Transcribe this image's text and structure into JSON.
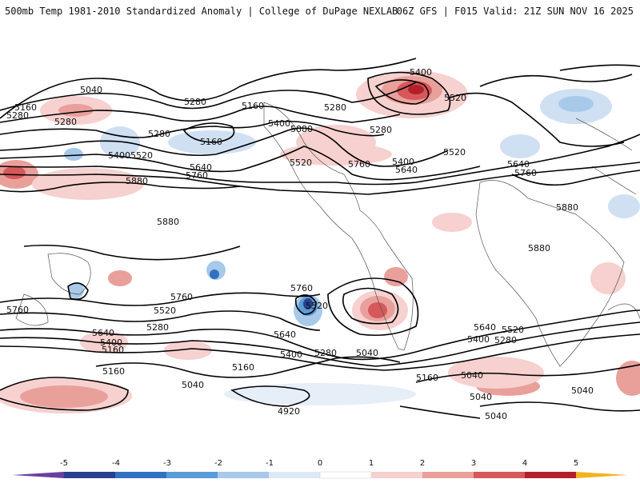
{
  "header": {
    "title": "500mb Temp 1981-2010 Standardized Anomaly | College of DuPage NEXLAB",
    "run_info": "06Z GFS | F015 Valid: 21Z SUN NOV 16 2025"
  },
  "colorbar": {
    "ticks": [
      "-5",
      "-4",
      "-3",
      "-2",
      "-1",
      "0",
      "1",
      "2",
      "3",
      "4",
      "5"
    ],
    "colors": [
      "#6a3fa0",
      "#2a3f8f",
      "#2f72c0",
      "#5b9bd5",
      "#a9c9ea",
      "#dde9f5",
      "#ffffff",
      "#ffffff",
      "#f6d1cf",
      "#e9a09b",
      "#d6585a",
      "#b4202a",
      "#7a0a14",
      "#f2b320"
    ]
  },
  "map": {
    "contour_labels": [
      "5040",
      "5160",
      "5280",
      "5280",
      "5160",
      "5280",
      "5400",
      "5520",
      "5640",
      "5760",
      "5880",
      "5280",
      "5160",
      "5400",
      "5520",
      "5280",
      "5400",
      "5520",
      "5760",
      "5640",
      "5400",
      "5280",
      "5520",
      "5760",
      "5640",
      "5880",
      "5880",
      "5880",
      "5880",
      "5760",
      "5520",
      "5640",
      "5400",
      "5160",
      "5280",
      "5760",
      "5520",
      "5640",
      "5400",
      "5280",
      "5040",
      "5160",
      "5040",
      "4920",
      "5760",
      "5640",
      "5520",
      "5400",
      "5280",
      "5160",
      "5040",
      "5040",
      "5160",
      "5040",
      "5040"
    ]
  }
}
